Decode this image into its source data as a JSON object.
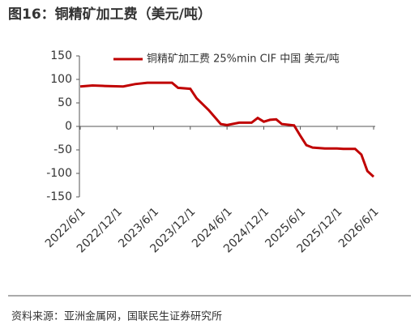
{
  "chart_data": {
    "type": "line",
    "title": "图16：铜精矿加工费（美元/吨）",
    "source": "资料来源：亚洲金属网，国联民生证券研究所",
    "x": [
      "2022/6/1",
      "2022/8/1",
      "2022/10/1",
      "2023/1/1",
      "2023/3/1",
      "2023/5/1",
      "2023/9/1",
      "2023/10/1",
      "2023/12/1",
      "2024/1/1",
      "2024/3/1",
      "2024/5/1",
      "2024/6/1",
      "2024/8/1",
      "2024/10/1",
      "2024/11/1",
      "2024/12/1",
      "2025/1/1",
      "2025/2/1",
      "2025/3/1",
      "2025/5/1",
      "2025/6/1",
      "2025/7/1",
      "2025/8/1",
      "2025/10/1",
      "2025/12/1",
      "2026/1/1",
      "2026/3/1",
      "2026/4/1",
      "2026/5/1",
      "2026/6/1"
    ],
    "series": [
      {
        "name": "铜精矿加工费 25%min CIF 中国 美元/吨",
        "color": "#c00000",
        "values": [
          85,
          87,
          86,
          85,
          90,
          93,
          93,
          82,
          80,
          60,
          35,
          5,
          3,
          8,
          8,
          18,
          10,
          14,
          15,
          5,
          2,
          -20,
          -40,
          -45,
          -47,
          -47,
          -48,
          -48,
          -60,
          -95,
          -107
        ]
      }
    ],
    "xlim": [
      "2022/6/1",
      "2026/6/1"
    ],
    "xticks": [
      "2022/6/1",
      "2022/12/1",
      "2023/6/1",
      "2023/12/1",
      "2024/6/1",
      "2024/12/1",
      "2025/6/1",
      "2025/12/1",
      "2026/6/1"
    ],
    "ylim": [
      -150,
      150
    ],
    "yticks": [
      -150,
      -100,
      -50,
      0,
      50,
      100,
      150
    ],
    "legend": "top"
  }
}
